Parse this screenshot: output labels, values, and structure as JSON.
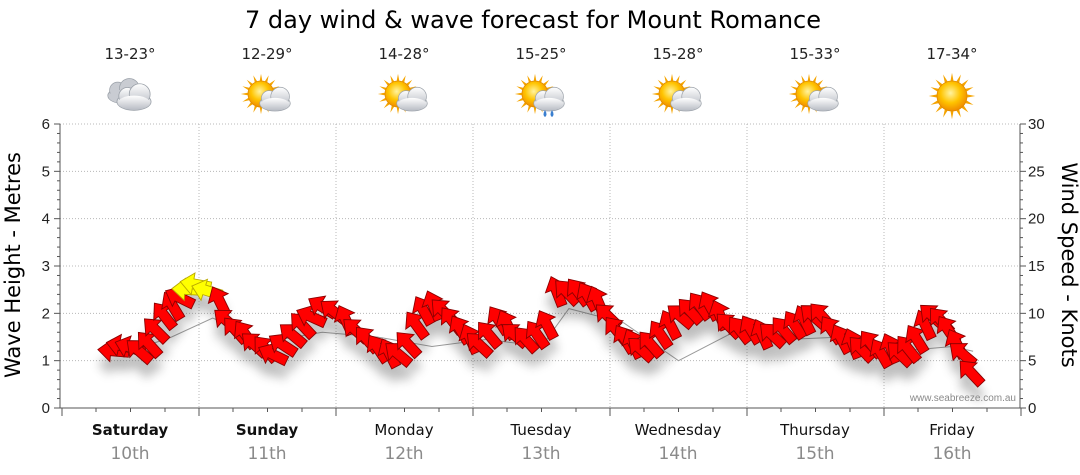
{
  "chart_data": {
    "type": "line",
    "title": "7 day wind & wave forecast for Mount Romance",
    "ylabel_left": "Wave Height - Metres",
    "ylabel_right": "Wind Speed - Knots",
    "ylim_left": [
      0,
      6
    ],
    "ylim_right": [
      0,
      30
    ],
    "yticks_left": [
      "0",
      "1",
      "2",
      "3",
      "4",
      "5",
      "6"
    ],
    "yticks_right": [
      "0",
      "5",
      "10",
      "15",
      "20",
      "25",
      "30"
    ],
    "grid": true,
    "x_days": [
      0,
      1,
      2,
      3,
      4,
      5,
      6,
      7
    ],
    "days": [
      {
        "name": "Saturday",
        "date": "10th",
        "bold": true,
        "temp": "13-23°",
        "icon": "cloudy-icon"
      },
      {
        "name": "Sunday",
        "date": "11th",
        "bold": true,
        "temp": "12-29°",
        "icon": "sun-cloud-icon"
      },
      {
        "name": "Monday",
        "date": "12th",
        "bold": false,
        "temp": "14-28°",
        "icon": "sun-cloud-icon"
      },
      {
        "name": "Tuesday",
        "date": "13th",
        "bold": false,
        "temp": "15-25°",
        "icon": "sun-cloud-rain-icon"
      },
      {
        "name": "Wednesday",
        "date": "14th",
        "bold": false,
        "temp": "15-28°",
        "icon": "sun-cloud-icon"
      },
      {
        "name": "Thursday",
        "date": "15th",
        "bold": false,
        "temp": "15-33°",
        "icon": "sun-cloud-icon"
      },
      {
        "name": "Friday",
        "date": "16th",
        "bold": false,
        "temp": "17-34°",
        "icon": "sun-icon"
      }
    ],
    "wind_series": {
      "name": "Wind Speed",
      "units": "knots",
      "colors": {
        "normal": "#ff0000",
        "strong": "#ffff00"
      },
      "points": [
        [
          -0.1,
          6.0,
          1
        ],
        [
          -0.04,
          6.5,
          1
        ],
        [
          0.02,
          6.3,
          1
        ],
        [
          0.08,
          5.8,
          2
        ],
        [
          0.15,
          6.5,
          2
        ],
        [
          0.2,
          8.0,
          3
        ],
        [
          0.26,
          9.5,
          3
        ],
        [
          0.32,
          10.5,
          3
        ],
        [
          0.38,
          11.5,
          4
        ],
        [
          0.44,
          12.5,
          4
        ],
        [
          0.5,
          13.0,
          4
        ],
        [
          0.58,
          12.3,
          4
        ],
        [
          0.66,
          11.0,
          3
        ],
        [
          0.72,
          9.0,
          3
        ],
        [
          0.78,
          8.0,
          3
        ],
        [
          0.85,
          7.5,
          3
        ],
        [
          0.92,
          6.5,
          2
        ],
        [
          1.0,
          6.0,
          2
        ],
        [
          1.06,
          5.5,
          2
        ],
        [
          1.13,
          6.5,
          2
        ],
        [
          1.2,
          7.5,
          2
        ],
        [
          1.27,
          8.5,
          2
        ],
        [
          1.34,
          9.5,
          2
        ],
        [
          1.42,
          10.5,
          2
        ],
        [
          1.5,
          10.0,
          2
        ],
        [
          1.58,
          9.0,
          3
        ],
        [
          1.66,
          8.0,
          3
        ],
        [
          1.74,
          7.0,
          3
        ],
        [
          1.82,
          6.0,
          3
        ],
        [
          1.9,
          5.5,
          3
        ],
        [
          1.97,
          5.5,
          3
        ],
        [
          2.04,
          6.5,
          3
        ],
        [
          2.1,
          8.5,
          3
        ],
        [
          2.15,
          10.0,
          3
        ],
        [
          2.22,
          10.5,
          3
        ],
        [
          2.3,
          10.0,
          3
        ],
        [
          2.36,
          9.0,
          3
        ],
        [
          2.42,
          8.0,
          3
        ],
        [
          2.49,
          7.0,
          3
        ],
        [
          2.56,
          6.5,
          3
        ],
        [
          2.63,
          7.5,
          3
        ],
        [
          2.7,
          9.0,
          3
        ],
        [
          2.76,
          8.5,
          3
        ],
        [
          2.82,
          7.5,
          3
        ],
        [
          2.9,
          7.0,
          3
        ],
        [
          2.98,
          7.5,
          3
        ],
        [
          3.05,
          8.5,
          3
        ],
        [
          3.12,
          12.0,
          3
        ],
        [
          3.2,
          12.0,
          3
        ],
        [
          3.28,
          12.0,
          3
        ],
        [
          3.35,
          11.5,
          3
        ],
        [
          3.42,
          11.0,
          3
        ],
        [
          3.5,
          9.5,
          3
        ],
        [
          3.56,
          8.0,
          3
        ],
        [
          3.62,
          7.0,
          3
        ],
        [
          3.68,
          6.5,
          3
        ],
        [
          3.74,
          6.0,
          3
        ],
        [
          3.81,
          6.5,
          3
        ],
        [
          3.88,
          7.5,
          3
        ],
        [
          3.95,
          8.5,
          3
        ],
        [
          4.03,
          9.5,
          3
        ],
        [
          4.1,
          10.0,
          3
        ],
        [
          4.17,
          10.5,
          3
        ],
        [
          4.24,
          10.5,
          3
        ],
        [
          4.31,
          9.5,
          3
        ],
        [
          4.38,
          8.5,
          3
        ],
        [
          4.46,
          8.0,
          3
        ],
        [
          4.54,
          8.0,
          3
        ],
        [
          4.62,
          7.5,
          3
        ],
        [
          4.7,
          7.5,
          3
        ],
        [
          4.78,
          8.0,
          3
        ],
        [
          4.86,
          8.5,
          3
        ],
        [
          4.93,
          9.0,
          3
        ],
        [
          5.0,
          9.5,
          3
        ],
        [
          5.06,
          9.5,
          3
        ],
        [
          5.13,
          8.0,
          3
        ],
        [
          5.2,
          7.0,
          3
        ],
        [
          5.28,
          6.5,
          3
        ],
        [
          5.35,
          6.0,
          3
        ],
        [
          5.42,
          6.5,
          3
        ],
        [
          5.49,
          5.5,
          3
        ],
        [
          5.56,
          6.0,
          3
        ],
        [
          5.63,
          5.5,
          3
        ],
        [
          5.69,
          6.0,
          3
        ],
        [
          5.75,
          7.0,
          3
        ],
        [
          5.81,
          8.5,
          3
        ],
        [
          5.87,
          9.5,
          3
        ],
        [
          5.93,
          9.0,
          3
        ],
        [
          5.98,
          8.0,
          3
        ],
        [
          6.04,
          6.5,
          3
        ],
        [
          6.09,
          5.5,
          3
        ],
        [
          6.15,
          3.5,
          3
        ]
      ]
    },
    "wave_series": {
      "name": "Wave Height",
      "units": "metres",
      "x": [
        -0.1,
        0.3,
        0.6,
        1.0,
        1.4,
        1.8,
        2.2,
        2.6,
        3.0,
        3.2,
        3.6,
        4.0,
        4.4,
        4.8,
        5.2,
        5.6,
        6.0,
        6.15
      ],
      "values": [
        1.1,
        1.5,
        1.9,
        1.4,
        1.6,
        1.5,
        1.3,
        1.45,
        1.3,
        2.1,
        1.8,
        1.0,
        1.6,
        1.45,
        1.5,
        1.2,
        1.3,
        1.2
      ]
    }
  },
  "credit": "www.seabreeze.com.au"
}
